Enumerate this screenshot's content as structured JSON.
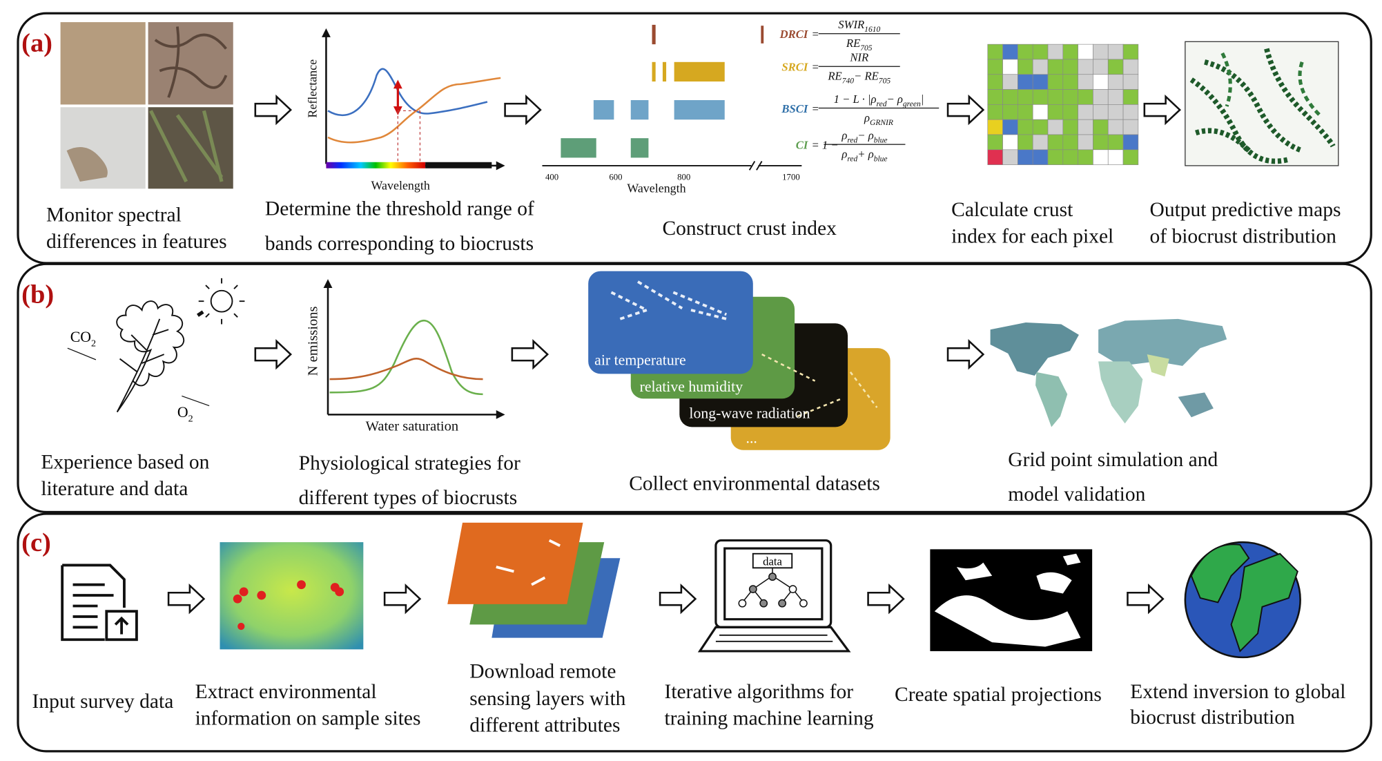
{
  "panels": [
    {
      "label": "(a)",
      "plot1": {
        "y_label": "Reflectance",
        "x_label": "Wavelength"
      },
      "plot2": {
        "x_label": "Wavelength",
        "ticks": [
          "400",
          "600",
          "800",
          "1700"
        ]
      },
      "indices": [
        {
          "name": "DRCI",
          "lhs": "=",
          "num": [
            "SWIR",
            "1610"
          ],
          "den": [
            "RE",
            "705"
          ]
        },
        {
          "name": "SRCI",
          "lhs": "=",
          "num": [
            "NIR"
          ],
          "den": [
            "RE",
            "740",
            "− RE",
            "705"
          ]
        },
        {
          "name": "BSCI",
          "lhs": "=",
          "num": [
            "1 − L · |ρ",
            "red",
            "− ρ",
            "green",
            "|"
          ],
          "den": [
            "ρ",
            "GRNIR"
          ]
        },
        {
          "name": "CI",
          "lhs": "= 1 −",
          "num": [
            "ρ",
            "red",
            "− ρ",
            "blue"
          ],
          "den": [
            "ρ",
            "red",
            "+ ρ",
            "blue"
          ]
        }
      ],
      "captions": [
        [
          "Monitor spectral",
          "differences in features"
        ],
        [
          "Determine the threshold range of",
          "bands corresponding to biocrusts"
        ],
        [
          "Construct crust index"
        ],
        [
          "Calculate crust",
          "index for each pixel"
        ],
        [
          "Output predictive maps",
          "of biocrust distribution"
        ]
      ]
    },
    {
      "label": "(b)",
      "gases": [
        "CO",
        "2",
        "O",
        "2"
      ],
      "plot": {
        "y_label": "N emissions",
        "x_label": "Water saturation"
      },
      "layers": [
        "air temperature",
        "relative humidity",
        "long-wave radiation",
        "..."
      ],
      "captions": [
        [
          "Experience based on",
          "literature and data"
        ],
        [
          "Physiological strategies for",
          "different types of biocrusts"
        ],
        [
          "Collect environmental datasets"
        ],
        [
          "Grid point simulation and",
          "model validation"
        ]
      ]
    },
    {
      "label": "(c)",
      "laptop_label": "data",
      "captions": [
        [
          "Input survey data"
        ],
        [
          "Extract  environmental",
          "information on sample sites"
        ],
        [
          "Download remote",
          "sensing layers with",
          "different attributes"
        ],
        [
          "Iterative algorithms for",
          "training machine learning"
        ],
        [
          "Create spatial projections"
        ],
        [
          "Extend inversion to global",
          "biocrust distribution"
        ]
      ]
    }
  ]
}
